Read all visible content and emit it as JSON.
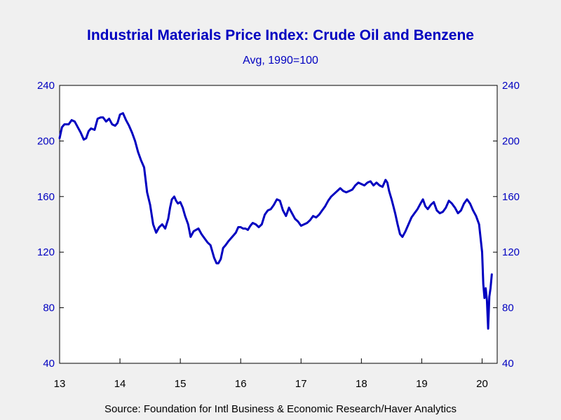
{
  "chart_data": {
    "type": "line",
    "title": "Industrial Materials Price Index: Crude Oil and Benzene",
    "subtitle": "Avg, 1990=100",
    "source": "Source:  Foundation for Intl Business & Economic Research/Haver Analytics",
    "ylim": [
      40,
      240
    ],
    "y_ticks": [
      40,
      80,
      120,
      160,
      200,
      240
    ],
    "y_axis_right": true,
    "x_ticks": [
      {
        "label": "13",
        "x": 2013
      },
      {
        "label": "14",
        "x": 2014
      },
      {
        "label": "15",
        "x": 2015
      },
      {
        "label": "16",
        "x": 2016
      },
      {
        "label": "17",
        "x": 2017
      },
      {
        "label": "18",
        "x": 2018
      },
      {
        "label": "19",
        "x": 2019
      },
      {
        "label": "20",
        "x": 2020
      }
    ],
    "xlim": [
      2013,
      2020.25
    ],
    "grid": false,
    "series": [
      {
        "color": "#0000c0",
        "x": [
          2013.0,
          2013.04,
          2013.08,
          2013.15,
          2013.2,
          2013.25,
          2013.3,
          2013.35,
          2013.4,
          2013.44,
          2013.48,
          2013.52,
          2013.58,
          2013.63,
          2013.68,
          2013.72,
          2013.77,
          2013.82,
          2013.87,
          2013.92,
          2013.96,
          2014.0,
          2014.05,
          2014.1,
          2014.15,
          2014.2,
          2014.25,
          2014.3,
          2014.35,
          2014.4,
          2014.45,
          2014.5,
          2014.55,
          2014.6,
          2014.65,
          2014.7,
          2014.75,
          2014.8,
          2014.83,
          2014.86,
          2014.9,
          2014.93,
          2014.96,
          2015.0,
          2015.04,
          2015.08,
          2015.13,
          2015.17,
          2015.22,
          2015.26,
          2015.3,
          2015.35,
          2015.4,
          2015.45,
          2015.5,
          2015.56,
          2015.6,
          2015.63,
          2015.67,
          2015.71,
          2015.75,
          2015.8,
          2015.84,
          2015.88,
          2015.92,
          2015.96,
          2016.0,
          2016.04,
          2016.08,
          2016.12,
          2016.16,
          2016.2,
          2016.25,
          2016.3,
          2016.35,
          2016.4,
          2016.45,
          2016.5,
          2016.55,
          2016.6,
          2016.65,
          2016.7,
          2016.75,
          2016.8,
          2016.85,
          2016.9,
          2016.95,
          2017.0,
          2017.05,
          2017.1,
          2017.15,
          2017.2,
          2017.25,
          2017.3,
          2017.35,
          2017.4,
          2017.45,
          2017.5,
          2017.55,
          2017.6,
          2017.65,
          2017.7,
          2017.75,
          2017.8,
          2017.85,
          2017.9,
          2017.95,
          2018.0,
          2018.05,
          2018.1,
          2018.15,
          2018.2,
          2018.25,
          2018.3,
          2018.35,
          2018.4,
          2018.43,
          2018.46,
          2018.5,
          2018.53,
          2018.56,
          2018.6,
          2018.64,
          2018.68,
          2018.73,
          2018.78,
          2018.83,
          2018.88,
          2018.93,
          2018.98,
          2019.02,
          2019.06,
          2019.1,
          2019.15,
          2019.2,
          2019.25,
          2019.3,
          2019.35,
          2019.4,
          2019.45,
          2019.5,
          2019.55,
          2019.6,
          2019.65,
          2019.7,
          2019.75,
          2019.8,
          2019.85,
          2019.9,
          2019.95,
          2020.0,
          2020.02,
          2020.04,
          2020.06,
          2020.08,
          2020.1,
          2020.12,
          2020.14,
          2020.16
        ],
        "values": [
          202,
          210,
          212,
          212,
          215,
          214,
          210,
          206,
          201,
          202,
          207,
          209,
          208,
          216,
          217,
          217,
          214,
          216,
          212,
          211,
          213,
          219,
          220,
          215,
          211,
          206,
          200,
          192,
          186,
          181,
          163,
          154,
          140,
          134,
          138,
          140,
          137,
          144,
          152,
          158,
          160,
          157,
          155,
          156,
          152,
          146,
          140,
          131,
          135,
          136,
          137,
          133,
          130,
          127,
          125,
          116,
          112,
          112,
          115,
          123,
          125,
          128,
          130,
          132,
          134,
          138,
          138,
          137,
          137,
          136,
          139,
          141,
          140,
          138,
          140,
          147,
          150,
          151,
          154,
          158,
          157,
          150,
          146,
          152,
          148,
          144,
          142,
          139,
          140,
          141,
          143,
          146,
          145,
          147,
          150,
          153,
          157,
          160,
          162,
          164,
          166,
          164,
          163,
          164,
          165,
          168,
          170,
          169,
          168,
          170,
          171,
          168,
          170,
          168,
          167,
          172,
          170,
          164,
          158,
          153,
          148,
          140,
          133,
          131,
          135,
          140,
          145,
          148,
          151,
          155,
          158,
          153,
          151,
          154,
          156,
          150,
          148,
          149,
          152,
          157,
          155,
          152,
          148,
          150,
          155,
          158,
          155,
          150,
          146,
          140,
          120,
          97,
          87,
          94,
          85,
          65,
          88,
          94,
          104
        ]
      }
    ]
  }
}
